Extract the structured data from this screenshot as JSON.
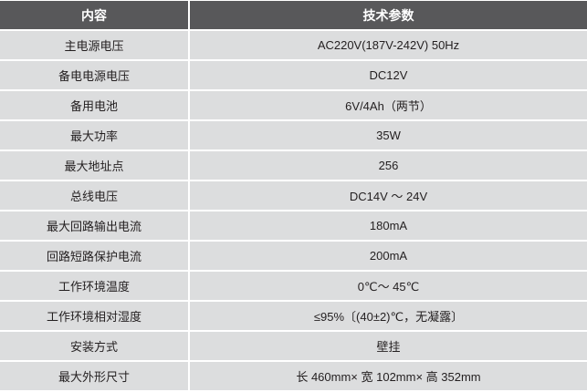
{
  "header": {
    "col1": "内容",
    "col2": "技术参数"
  },
  "rows": [
    {
      "item": "主电源电压",
      "value": "AC220V(187V-242V)   50Hz"
    },
    {
      "item": "备电电源电压",
      "value": "DC12V"
    },
    {
      "item": "备用电池",
      "value": "6V/4Ah（两节）"
    },
    {
      "item": "最大功率",
      "value": "35W"
    },
    {
      "item": "最大地址点",
      "value": "256"
    },
    {
      "item": "总线电压",
      "value": "DC14V ～ 24V"
    },
    {
      "item": "最大回路输出电流",
      "value": "180mA"
    },
    {
      "item": "回路短路保护电流",
      "value": "200mA"
    },
    {
      "item": "工作环境温度",
      "value": "0℃～ 45℃"
    },
    {
      "item": "工作环境相对湿度",
      "value": "≤95%〔(40±2)℃，无凝露〕"
    },
    {
      "item": "安装方式",
      "value": "壁挂"
    },
    {
      "item": "最大外形尺寸",
      "value": "长 460mm× 宽 102mm× 高 352mm"
    }
  ]
}
